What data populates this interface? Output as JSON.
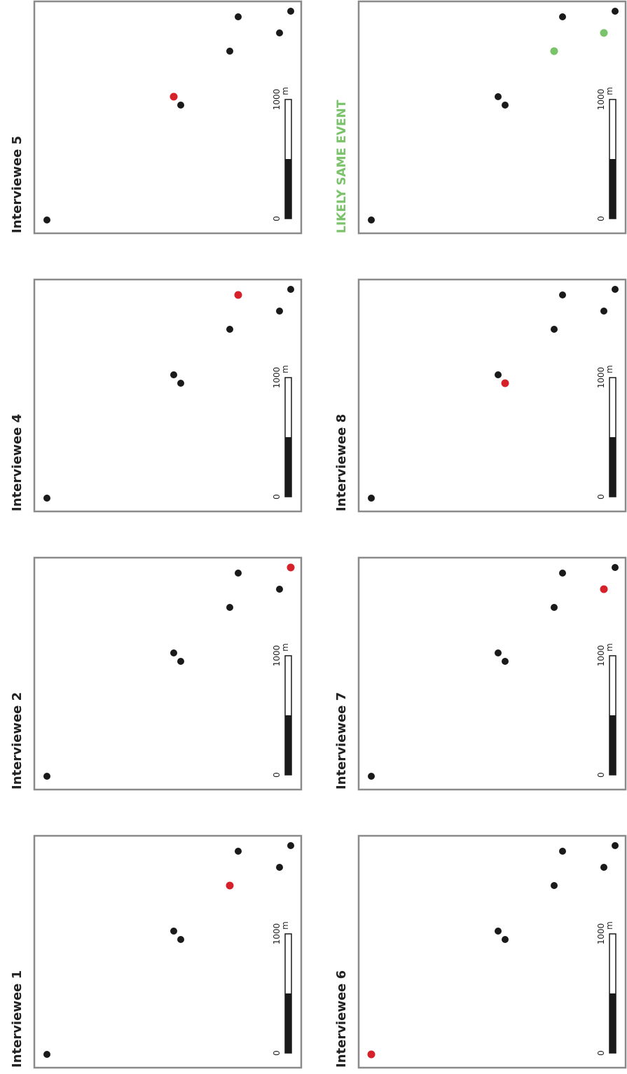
{
  "colors": {
    "frame": "#8a8a8a",
    "dot": "#1a1a1a",
    "highlight": "#d6202a",
    "likely": "#7ac36a",
    "scale_fill": "#1a1a1a"
  },
  "legend": {
    "label": "LIKELY SAME EVENT",
    "color": "#7ac36a"
  },
  "scale_bar": {
    "start_label": "0",
    "end_label": "1000",
    "unit": "m"
  },
  "panels": [
    {
      "id": "p1",
      "title": "Interviewee 1",
      "highlight": [
        3
      ]
    },
    {
      "id": "p2",
      "title": "Interviewee 2",
      "highlight": [
        6
      ]
    },
    {
      "id": "p4",
      "title": "Interviewee 4",
      "highlight": [
        4
      ]
    },
    {
      "id": "p5",
      "title": "Interviewee 5",
      "highlight": [
        1
      ]
    },
    {
      "id": "p6",
      "title": "Interviewee 6",
      "highlight": [
        0
      ]
    },
    {
      "id": "p7",
      "title": "Interviewee 7",
      "highlight": [
        5
      ]
    },
    {
      "id": "p8",
      "title": "Interviewee 8",
      "highlight": [
        2
      ]
    },
    {
      "id": "p9",
      "title": "",
      "likely": [
        3,
        5
      ]
    }
  ]
}
